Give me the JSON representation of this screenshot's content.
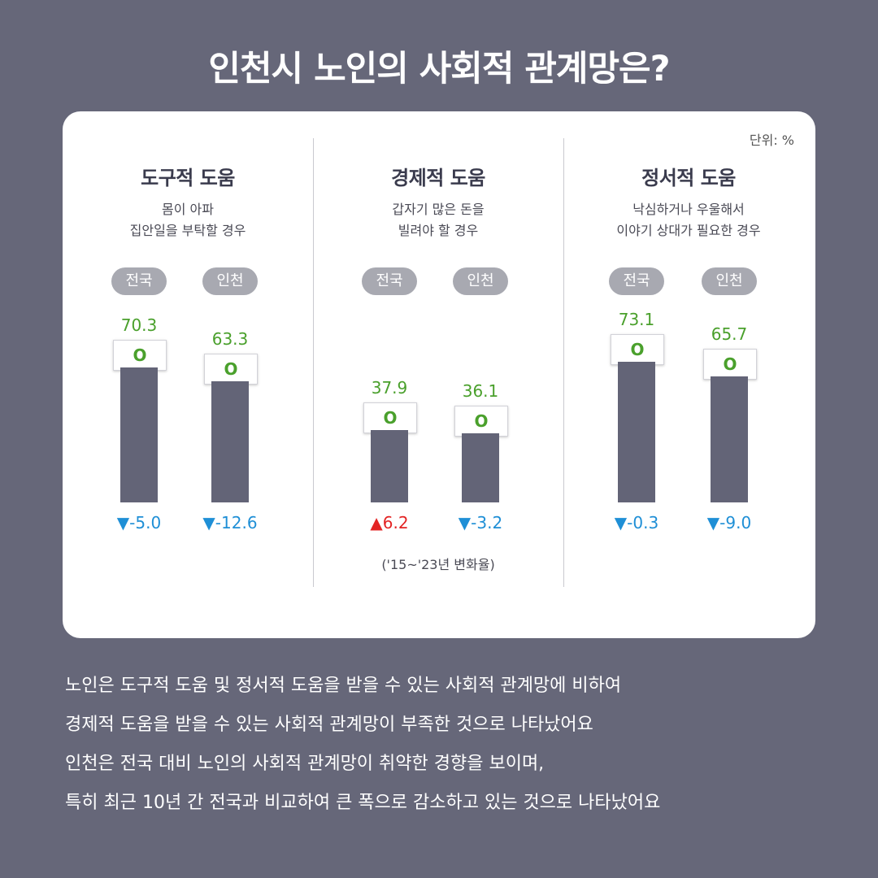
{
  "title": "인천시 노인의 사회적 관계망은?",
  "unit_label": "단위: %",
  "change_note": "('15~'23년 변화율)",
  "chart_data": {
    "type": "bar",
    "unit": "%",
    "ylim": [
      0,
      100
    ],
    "groups": [
      {
        "title": "도구적 도움",
        "subtitle": [
          "몸이 아파",
          "집안일을 부탁할 경우"
        ],
        "bars": [
          {
            "label": "전국",
            "value": 70.3,
            "value_text": "70.3",
            "marker": "O",
            "change_text": "▼-5.0",
            "change_dir": "down"
          },
          {
            "label": "인천",
            "value": 63.3,
            "value_text": "63.3",
            "marker": "O",
            "change_text": "▼-12.6",
            "change_dir": "down"
          }
        ]
      },
      {
        "title": "경제적 도움",
        "subtitle": [
          "갑자기 많은 돈을",
          "빌려야 할 경우"
        ],
        "bars": [
          {
            "label": "전국",
            "value": 37.9,
            "value_text": "37.9",
            "marker": "O",
            "change_text": "▲6.2",
            "change_dir": "up"
          },
          {
            "label": "인천",
            "value": 36.1,
            "value_text": "36.1",
            "marker": "O",
            "change_text": "▼-3.2",
            "change_dir": "down"
          }
        ]
      },
      {
        "title": "정서적 도움",
        "subtitle": [
          "낙심하거나 우울해서",
          "이야기 상대가 필요한 경우"
        ],
        "bars": [
          {
            "label": "전국",
            "value": 73.1,
            "value_text": "73.1",
            "marker": "O",
            "change_text": "▼-0.3",
            "change_dir": "down"
          },
          {
            "label": "인천",
            "value": 65.7,
            "value_text": "65.7",
            "marker": "O",
            "change_text": "▼-9.0",
            "change_dir": "down"
          }
        ]
      }
    ]
  },
  "summary": [
    "노인은 도구적 도움 및 정서적 도움을 받을 수 있는 사회적 관계망에 비하여",
    "경제적 도움을 받을 수 있는 사회적 관계망이 부족한 것으로 나타났어요",
    "인천은 전국 대비 노인의 사회적 관계망이 취약한 경향을 보이며,",
    "특히 최근 10년 간 전국과 비교하여 큰 폭으로 감소하고 있는 것으로 나타났어요"
  ],
  "colors": {
    "background": "#666779",
    "bar": "#636477",
    "value_green": "#4aa02c",
    "decrease_blue": "#1f8fd6",
    "increase_red": "#e32424",
    "pill": "#a8a9b1"
  }
}
